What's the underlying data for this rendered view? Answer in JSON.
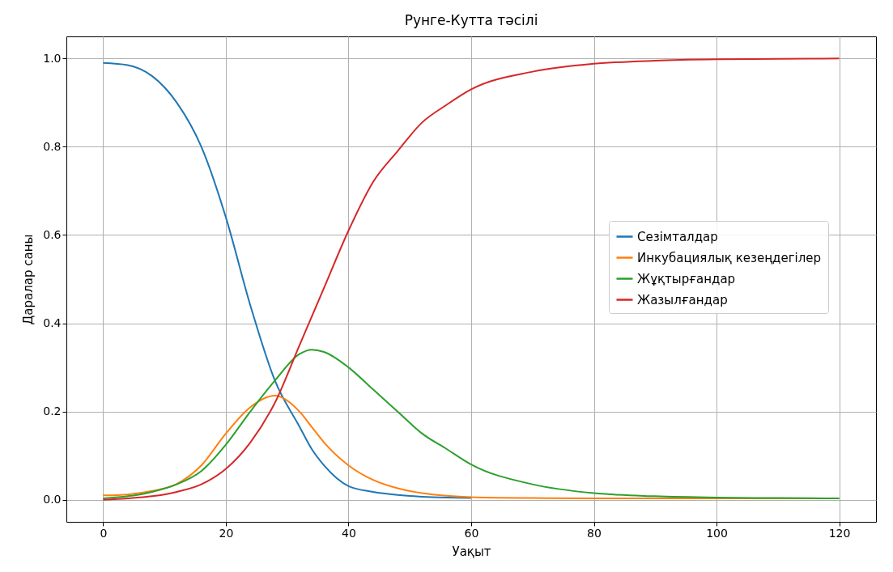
{
  "chart_data": {
    "type": "line",
    "title": "Рунге-Кутта тәсілі",
    "xlabel": "Уақыт",
    "ylabel": "Даралар саны",
    "x": [
      0,
      4,
      8,
      12,
      16,
      20,
      24,
      28,
      32,
      34,
      36,
      40,
      44,
      48,
      52,
      56,
      60,
      70,
      80,
      90,
      100,
      110,
      120
    ],
    "series": [
      {
        "name": "Сезімталдар",
        "color": "#1f77b4",
        "values": [
          0.99,
          0.985,
          0.96,
          0.9,
          0.8,
          0.64,
          0.44,
          0.27,
          0.166,
          0.115,
          0.078,
          0.031,
          0.018,
          0.011,
          0.007,
          0.005,
          0.004,
          null,
          null,
          null,
          null,
          null,
          null
        ]
      },
      {
        "name": "Инкубациялық кезеңдегілер",
        "color": "#ff7f0e",
        "values": [
          0.01,
          0.012,
          0.02,
          0.036,
          0.078,
          0.15,
          0.21,
          0.236,
          0.2,
          0.165,
          0.13,
          0.078,
          0.045,
          0.026,
          0.015,
          0.009,
          0.006,
          0.004,
          0.003,
          0.003,
          0.003,
          0.003,
          0.003
        ]
      },
      {
        "name": "Жұқтырғандар",
        "color": "#2ca02c",
        "values": [
          0.003,
          0.008,
          0.018,
          0.035,
          0.065,
          0.125,
          0.2,
          0.27,
          0.33,
          0.34,
          0.335,
          0.3,
          0.25,
          0.2,
          0.15,
          0.115,
          0.08,
          0.035,
          0.015,
          0.008,
          0.005,
          0.004,
          0.003
        ]
      },
      {
        "name": "Жазылғандар",
        "color": "#d62728",
        "values": [
          0.0,
          0.003,
          0.008,
          0.018,
          0.035,
          0.07,
          0.13,
          0.22,
          0.35,
          0.415,
          0.48,
          0.61,
          0.72,
          0.79,
          0.855,
          0.895,
          0.93,
          0.97,
          0.988,
          0.995,
          0.998,
          0.999,
          1.0
        ]
      }
    ],
    "xlim": [
      -6,
      126
    ],
    "xticks": [
      0,
      20,
      40,
      60,
      80,
      100,
      120
    ],
    "ylim": [
      -0.05,
      1.05
    ],
    "yticks": [
      {
        "value": 0,
        "label": "0.0"
      },
      {
        "value": 0.2,
        "label": "0.2"
      },
      {
        "value": 0.4,
        "label": "0.4"
      },
      {
        "value": 0.6,
        "label": "0.6"
      },
      {
        "value": 0.8,
        "label": "0.8"
      },
      {
        "value": 1,
        "label": "1.0"
      }
    ],
    "grid": true,
    "legend": "right"
  }
}
